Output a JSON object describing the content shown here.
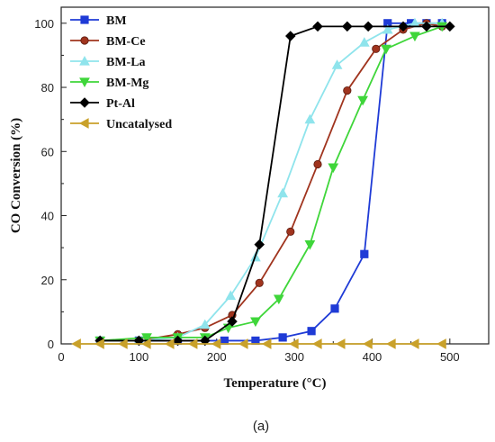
{
  "chart_data": {
    "type": "line",
    "xlabel": "Temperature (°C)",
    "ylabel": "CO Conversion (%)",
    "panel_label": "(a)",
    "xlim": [
      0,
      550
    ],
    "ylim": [
      0,
      105
    ],
    "xticks": [
      0,
      100,
      200,
      300,
      400,
      500
    ],
    "yticks": [
      0,
      20,
      40,
      60,
      80,
      100
    ],
    "grid": false,
    "legend_position": "top-left",
    "series": [
      {
        "name": "BM",
        "color": "#1f3bd6",
        "marker": "square",
        "x": [
          50,
          100,
          150,
          210,
          250,
          285,
          322,
          352,
          390,
          420,
          450,
          470,
          490
        ],
        "y": [
          1,
          1,
          1,
          1,
          1,
          2,
          4,
          11,
          28,
          100,
          100,
          100,
          100
        ]
      },
      {
        "name": "BM-Ce",
        "color": "#a0341e",
        "marker": "circle",
        "x": [
          50,
          100,
          150,
          185,
          220,
          255,
          295,
          330,
          368,
          405,
          440,
          470,
          490
        ],
        "y": [
          1,
          1,
          3,
          5,
          9,
          19,
          35,
          56,
          79,
          92,
          98,
          100,
          99
        ]
      },
      {
        "name": "BM-La",
        "color": "#8fe4ec",
        "marker": "triangle-up",
        "x": [
          50,
          100,
          150,
          185,
          218,
          250,
          285,
          320,
          355,
          390,
          420,
          455,
          490
        ],
        "y": [
          1,
          1,
          2,
          6,
          15,
          27,
          47,
          70,
          87,
          94,
          98,
          100,
          100
        ]
      },
      {
        "name": "BM-Mg",
        "color": "#3fd63a",
        "marker": "triangle-down",
        "x": [
          50,
          110,
          150,
          185,
          215,
          250,
          280,
          320,
          350,
          388,
          418,
          455,
          490
        ],
        "y": [
          1,
          2,
          2,
          2,
          5,
          7,
          14,
          31,
          55,
          76,
          92,
          96,
          99
        ]
      },
      {
        "name": "Pt-Al",
        "color": "#000000",
        "marker": "diamond",
        "x": [
          50,
          100,
          150,
          185,
          220,
          255,
          295,
          330,
          368,
          395,
          440,
          470,
          500
        ],
        "y": [
          1,
          1,
          1,
          1,
          7,
          31,
          96,
          99,
          99,
          99,
          99,
          99,
          99
        ]
      },
      {
        "name": "Uncatalysed",
        "color": "#c9a12a",
        "marker": "triangle-left",
        "x": [
          20,
          50,
          80,
          110,
          140,
          170,
          200,
          235,
          265,
          300,
          330,
          360,
          395,
          425,
          455,
          490
        ],
        "y": [
          0,
          0,
          0,
          0,
          0,
          0,
          0,
          0,
          0,
          0,
          0,
          0,
          0,
          0,
          0,
          0
        ]
      }
    ]
  }
}
